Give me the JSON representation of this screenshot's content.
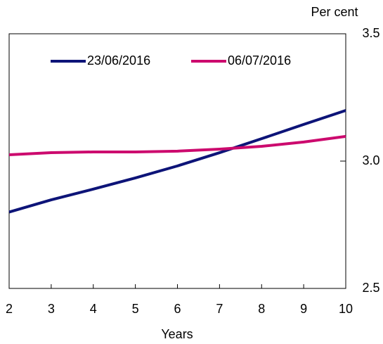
{
  "chart_data": {
    "type": "line",
    "y_unit_label": "Per cent",
    "x_label": "Years",
    "x": [
      2,
      3,
      4,
      5,
      6,
      7,
      8,
      9,
      10
    ],
    "series": [
      {
        "name": "23/06/2016",
        "color": "#0d1478",
        "values": [
          2.8,
          2.848,
          2.89,
          2.934,
          2.981,
          3.033,
          3.088,
          3.144,
          3.199
        ]
      },
      {
        "name": "06/07/2016",
        "color": "#cc0a6e",
        "values": [
          3.025,
          3.033,
          3.036,
          3.036,
          3.039,
          3.047,
          3.058,
          3.075,
          3.097
        ]
      }
    ],
    "xlim": [
      2,
      10
    ],
    "xticks": [
      2,
      3,
      4,
      5,
      6,
      7,
      8,
      9,
      10
    ],
    "ylim": [
      2.5,
      3.5
    ],
    "yticks": [
      2.5,
      {
        "value": 3,
        "label": "3.0"
      },
      3.5
    ],
    "y_axis_side": "right",
    "legend": "top"
  }
}
